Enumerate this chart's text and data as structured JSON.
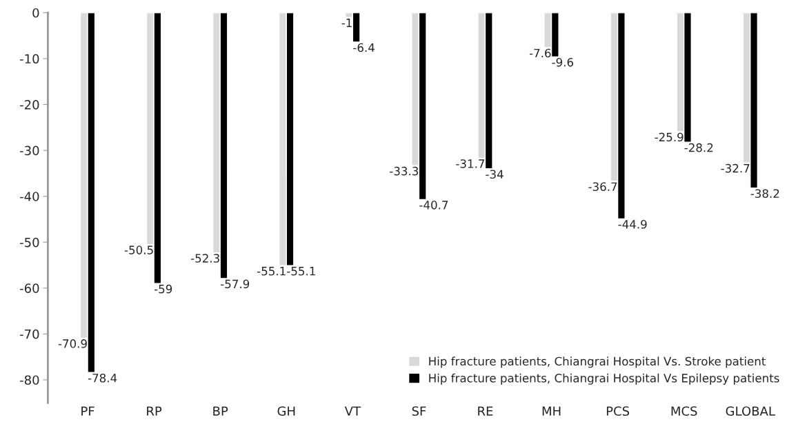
{
  "chart_data": {
    "type": "bar",
    "categories": [
      "PF",
      "RP",
      "BP",
      "GH",
      "VT",
      "SF",
      "RE",
      "MH",
      "PCS",
      "MCS",
      "GLOBAL"
    ],
    "series": [
      {
        "name": "Hip fracture patients, Chiangrai Hospital Vs. Stroke patient",
        "color": "#d9d9d9",
        "values": [
          -70.9,
          -50.5,
          -52.3,
          -55.1,
          -1,
          -33.3,
          -31.7,
          -7.6,
          -36.7,
          -25.9,
          -32.7
        ]
      },
      {
        "name": "Hip fracture patients, Chiangrai Hospital Vs Epilepsy patients",
        "color": "#000000",
        "values": [
          -78.4,
          -59,
          -57.9,
          -55.1,
          -6.4,
          -40.7,
          -34,
          -9.6,
          -44.9,
          -28.2,
          -38.2
        ]
      }
    ],
    "ylim": [
      -85,
      0
    ],
    "yticks": [
      -80,
      -70,
      -60,
      -50,
      -40,
      -30,
      -20,
      -10,
      0
    ],
    "data_labels": true,
    "legend": "bottom right",
    "grid": false
  }
}
